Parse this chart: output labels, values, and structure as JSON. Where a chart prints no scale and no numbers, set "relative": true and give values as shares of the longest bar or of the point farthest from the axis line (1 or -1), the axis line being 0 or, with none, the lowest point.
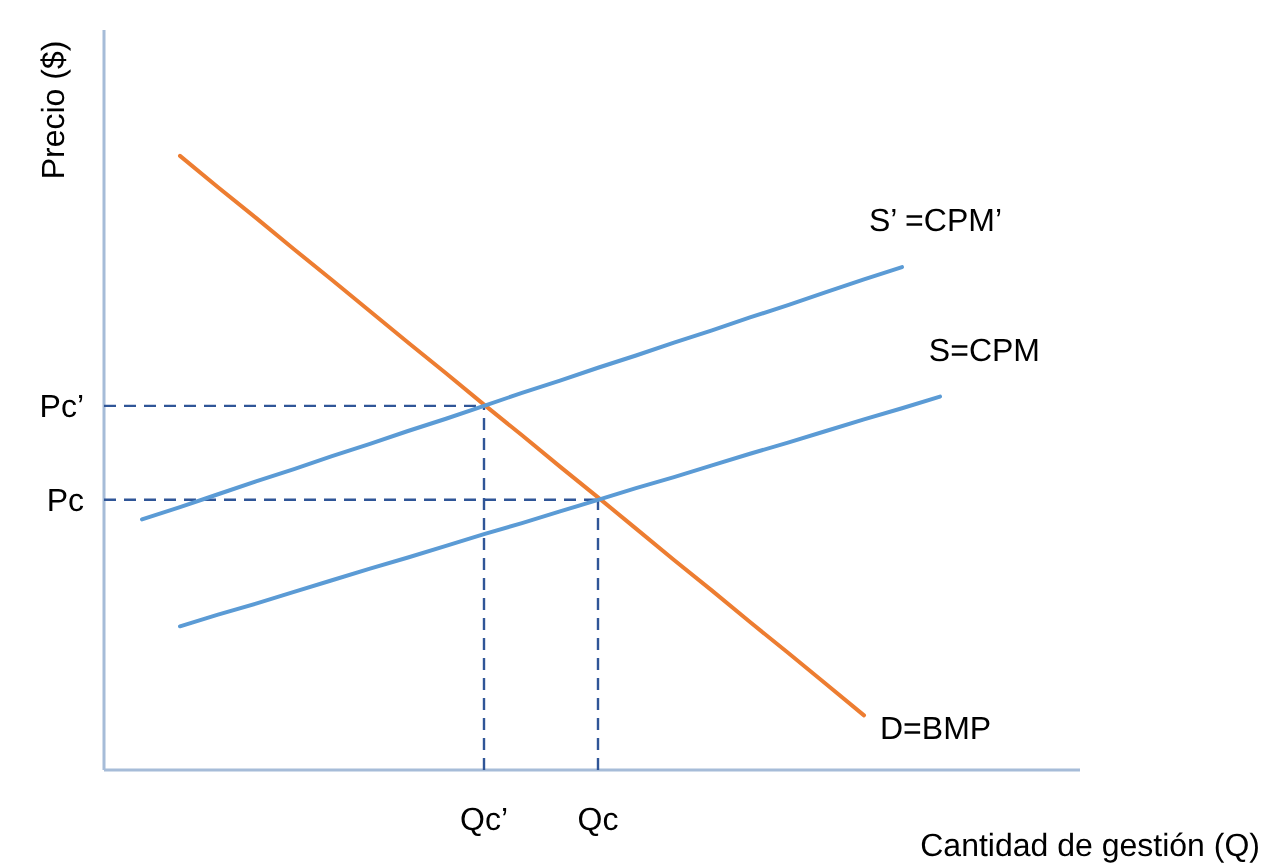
{
  "chart_data": {
    "type": "line",
    "relative": true,
    "xlabel": "Cantidad de gestión (Q)",
    "ylabel": "Precio ($)",
    "marker": "none",
    "categories": [
      null,
      null,
      null,
      null,
      null,
      null,
      null,
      null,
      null,
      null,
      "Qc’",
      null,
      null,
      "Qc",
      null,
      null,
      null,
      null,
      null,
      null,
      null,
      null,
      null,
      null,
      null,
      null
    ],
    "series": [
      {
        "name": "D=BMP",
        "color": "#ed7d31",
        "values": [
          null,
          null,
          1,
          0.949,
          0.899,
          0.848,
          0.798,
          0.747,
          0.696,
          0.646,
          0.595,
          0.545,
          0.494,
          0.444,
          0.393,
          0.342,
          0.292,
          0.241,
          0.191,
          0.14,
          0.089,
          null,
          null,
          null,
          null,
          null
        ]
      },
      {
        "name": "S’ =CPM’",
        "color": "#5b9bd5",
        "values": [
          null,
          0.408,
          0.428,
          0.449,
          0.47,
          0.49,
          0.511,
          0.531,
          0.552,
          0.572,
          0.593,
          0.614,
          0.634,
          0.655,
          0.675,
          0.696,
          0.716,
          0.737,
          0.757,
          0.778,
          0.799,
          0.819,
          null,
          null,
          null,
          null
        ]
      },
      {
        "name": "S=CPM",
        "color": "#5b9bd5",
        "values": [
          null,
          null,
          0.234,
          0.253,
          0.271,
          0.29,
          0.309,
          0.328,
          0.346,
          0.365,
          0.384,
          0.402,
          0.421,
          0.44,
          0.459,
          0.477,
          0.496,
          0.515,
          0.533,
          0.552,
          0.571,
          0.589,
          0.608,
          null,
          null,
          null
        ]
      }
    ],
    "ref_lines": [
      {
        "axis": "y",
        "value": 0.593,
        "label": "Pc’",
        "color": "#2f5597",
        "line_style": "dashed"
      },
      {
        "axis": "y",
        "value": 0.44,
        "label": "Pc",
        "color": "#2f5597",
        "line_style": "dashed"
      },
      {
        "axis": "x",
        "value": "Qc’",
        "color": "#2f5597",
        "line_style": "dashed"
      },
      {
        "axis": "x",
        "value": "Qc",
        "color": "#2f5597",
        "line_style": "dashed"
      }
    ]
  }
}
